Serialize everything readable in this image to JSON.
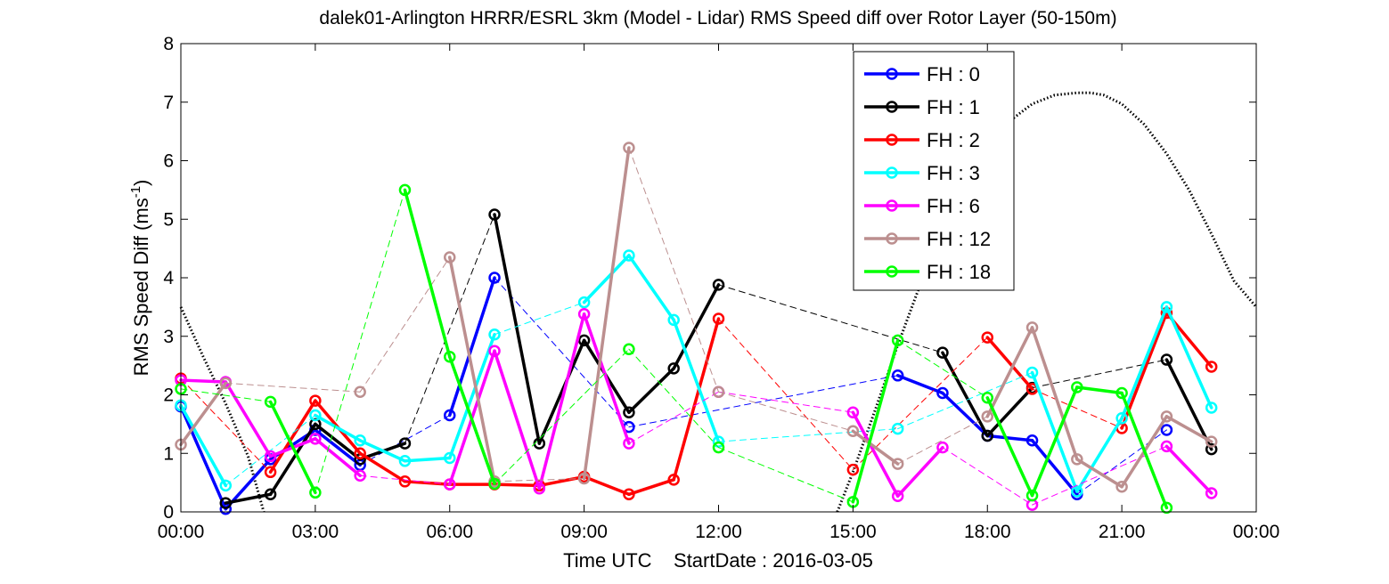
{
  "chart_data": {
    "type": "line",
    "title": "dalek01-Arlington HRRR/ESRL 3km (Model - Lidar) RMS Speed diff over Rotor Layer (50-150m)",
    "xlabel": "Time UTC    StartDate : 2016-03-05",
    "ylabel": "RMS Speed Diff (ms",
    "ylabel_sup": "-1",
    "ylabel_end": ")",
    "x_unit": "hours UTC",
    "xlim": [
      0,
      24
    ],
    "ylim": [
      0,
      8
    ],
    "x_ticks": [
      0,
      3,
      6,
      9,
      12,
      15,
      18,
      21,
      24
    ],
    "x_tick_labels": [
      "00:00",
      "03:00",
      "06:00",
      "09:00",
      "12:00",
      "15:00",
      "18:00",
      "21:00",
      "00:00"
    ],
    "y_ticks": [
      0,
      1,
      2,
      3,
      4,
      5,
      6,
      7,
      8
    ],
    "y_tick_labels": [
      "0",
      "1",
      "2",
      "3",
      "4",
      "5",
      "6",
      "7",
      "8"
    ],
    "grid": false,
    "legend_position": "top-right",
    "series": [
      {
        "name": "FH : 0",
        "color": "#0000ff",
        "x": [
          0,
          1,
          2,
          3,
          4,
          6,
          7,
          10,
          16,
          17,
          18,
          19,
          20,
          22
        ],
        "y": [
          1.8,
          0.05,
          0.9,
          1.4,
          0.8,
          1.65,
          4.0,
          1.45,
          2.33,
          2.03,
          1.3,
          1.22,
          0.3,
          1.4
        ]
      },
      {
        "name": "FH : 1",
        "color": "#000000",
        "x": [
          1,
          2,
          3,
          4,
          5,
          7,
          8,
          9,
          10,
          11,
          12,
          17,
          18,
          19,
          22,
          23
        ],
        "y": [
          0.15,
          0.3,
          1.5,
          0.9,
          1.17,
          5.08,
          1.17,
          2.93,
          1.7,
          2.45,
          3.88,
          2.72,
          1.3,
          2.12,
          2.6,
          1.07
        ]
      },
      {
        "name": "FH : 2",
        "color": "#ff0000",
        "x": [
          0,
          2,
          3,
          4,
          5,
          6,
          7,
          8,
          9,
          10,
          11,
          12,
          15,
          18,
          19,
          21,
          22,
          23
        ],
        "y": [
          2.28,
          0.68,
          1.9,
          1.0,
          0.52,
          0.47,
          0.47,
          0.45,
          0.6,
          0.3,
          0.55,
          3.3,
          0.72,
          2.98,
          2.1,
          1.43,
          3.4,
          2.48
        ]
      },
      {
        "name": "FH : 3",
        "color": "#00ffff",
        "x": [
          0,
          1,
          3,
          4,
          5,
          6,
          7,
          9,
          10,
          11,
          12,
          16,
          19,
          20,
          21,
          22,
          23
        ],
        "y": [
          1.82,
          0.45,
          1.65,
          1.22,
          0.87,
          0.92,
          3.03,
          3.58,
          4.38,
          3.28,
          1.2,
          1.42,
          2.38,
          0.35,
          1.6,
          3.5,
          1.78
        ]
      },
      {
        "name": "FH : 6",
        "color": "#ff00ff",
        "x": [
          0,
          1,
          2,
          3,
          4,
          6,
          7,
          8,
          9,
          10,
          12,
          15,
          16,
          17,
          19,
          22,
          23
        ],
        "y": [
          2.25,
          2.22,
          0.95,
          1.25,
          0.62,
          0.47,
          2.75,
          0.4,
          3.38,
          1.17,
          2.05,
          1.7,
          0.27,
          1.1,
          0.12,
          1.12,
          0.32
        ]
      },
      {
        "name": "FH : 12",
        "color": "#bc8f8f",
        "x": [
          0,
          1,
          4,
          6,
          7,
          9,
          10,
          12,
          15,
          16,
          18,
          19,
          20,
          21,
          22,
          23
        ],
        "y": [
          1.15,
          2.2,
          2.05,
          4.35,
          0.52,
          0.57,
          6.22,
          2.05,
          1.38,
          0.82,
          1.63,
          3.15,
          0.9,
          0.43,
          1.63,
          1.2
        ]
      },
      {
        "name": "FH : 18",
        "color": "#00ff00",
        "x": [
          0,
          2,
          3,
          5,
          6,
          7,
          10,
          12,
          15,
          16,
          18,
          19,
          20,
          21,
          22
        ],
        "y": [
          2.1,
          1.88,
          0.33,
          5.5,
          2.65,
          0.48,
          2.78,
          1.1,
          0.17,
          2.93,
          1.95,
          0.28,
          2.13,
          2.03,
          0.07
        ]
      }
    ],
    "sun_curve": {
      "color": "#000000",
      "x": [
        0,
        0.5,
        1.0,
        1.5,
        1.85,
        14.65,
        15.0,
        15.5,
        16.0,
        16.5,
        17.0,
        17.5,
        18.0,
        18.5,
        19.0,
        19.5,
        20.0,
        20.3,
        20.6,
        21.0,
        21.5,
        22.0,
        22.5,
        23.0,
        23.5,
        24.0
      ],
      "y": [
        3.5,
        2.65,
        1.85,
        0.95,
        0.0,
        0.0,
        0.68,
        1.75,
        2.85,
        3.88,
        4.82,
        5.6,
        6.22,
        6.68,
        6.97,
        7.12,
        7.16,
        7.16,
        7.12,
        6.97,
        6.62,
        6.12,
        5.5,
        4.75,
        3.95,
        3.5
      ]
    }
  }
}
